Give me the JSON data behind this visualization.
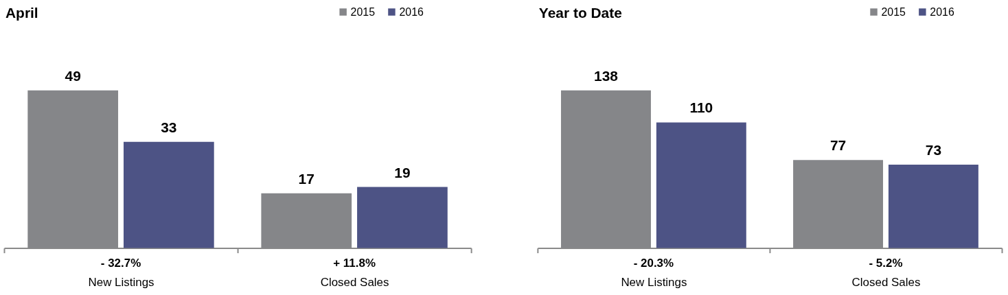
{
  "chart_data": [
    {
      "type": "bar",
      "title": "April",
      "categories": [
        "New Listings",
        "Closed Sales"
      ],
      "series": [
        {
          "name": "2015",
          "color": "#858689",
          "values": [
            49,
            17
          ]
        },
        {
          "name": "2016",
          "color": "#4d5385",
          "values": [
            33,
            19
          ]
        }
      ],
      "data_labels": true,
      "legend": "top right",
      "tick_labels": "x",
      "annotations": [
        "- 32.7%",
        "+ 11.8%"
      ]
    },
    {
      "type": "bar",
      "title": "Year to Date",
      "categories": [
        "New Listings",
        "Closed Sales"
      ],
      "series": [
        {
          "name": "2015",
          "color": "#858689",
          "values": [
            138,
            77
          ]
        },
        {
          "name": "2016",
          "color": "#4d5385",
          "values": [
            110,
            73
          ]
        }
      ],
      "data_labels": true,
      "legend": "top right",
      "tick_labels": "x",
      "annotations": [
        "- 20.3%",
        "- 5.2%"
      ]
    }
  ]
}
